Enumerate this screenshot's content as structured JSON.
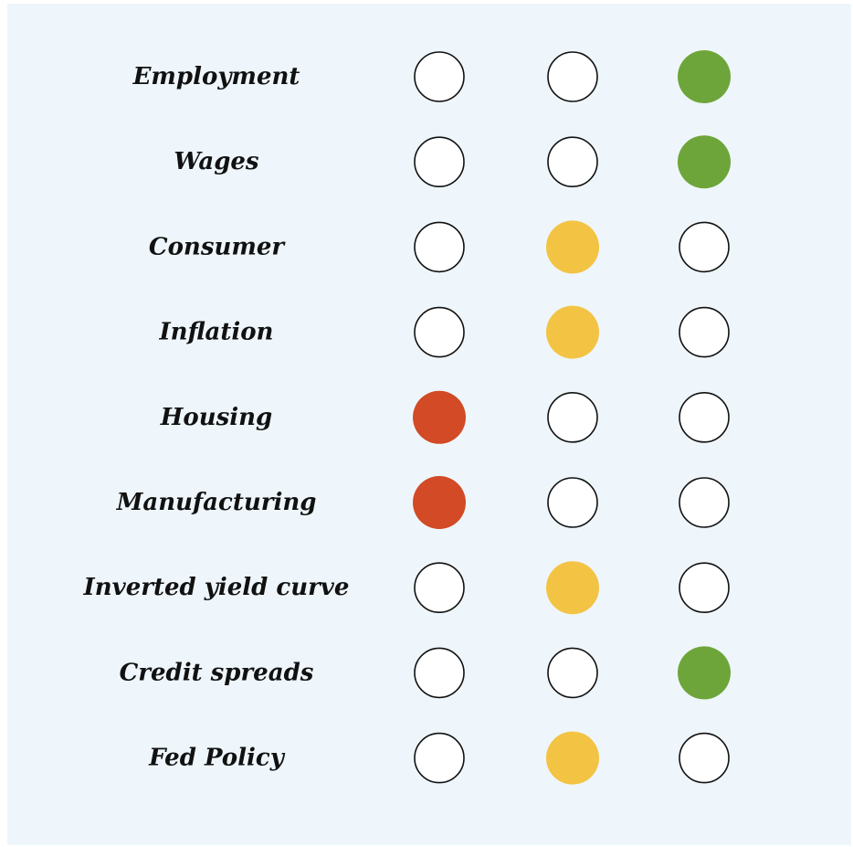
{
  "columns": [
    {
      "color": "#d24a26"
    },
    {
      "color": "#f3c343"
    },
    {
      "color": "#6ea53a"
    }
  ],
  "rows": [
    {
      "label": "Employment",
      "filled": 2
    },
    {
      "label": "Wages",
      "filled": 2
    },
    {
      "label": "Consumer",
      "filled": 1
    },
    {
      "label": "Inflation",
      "filled": 1
    },
    {
      "label": "Housing",
      "filled": 0
    },
    {
      "label": "Manufacturing",
      "filled": 0
    },
    {
      "label": "Inverted yield curve",
      "filled": 1
    },
    {
      "label": "Credit spreads",
      "filled": 2
    },
    {
      "label": "Fed Policy",
      "filled": 1
    }
  ]
}
